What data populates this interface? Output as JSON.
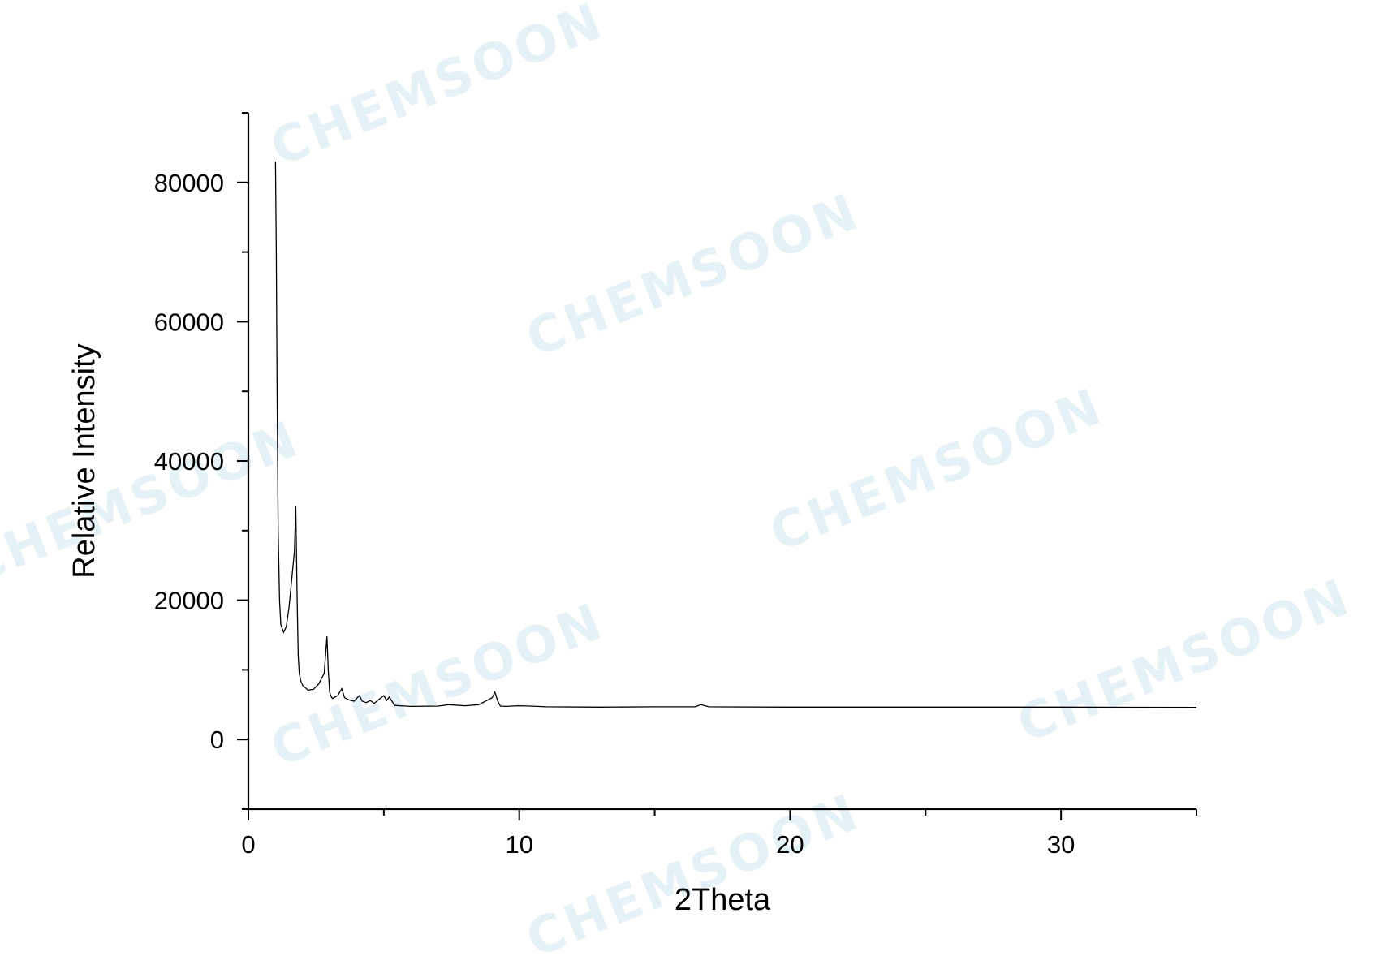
{
  "watermark": {
    "text": "CHEMSOON",
    "color": "#cfe9f3"
  },
  "chart_data": {
    "type": "line",
    "title": "",
    "xlabel": "2Theta",
    "ylabel": "Relative Intensity",
    "xlim": [
      0,
      35
    ],
    "ylim": [
      -10000,
      90000
    ],
    "x_ticks": [
      0,
      10,
      20,
      30
    ],
    "x_minor_ticks": [
      5,
      15,
      25,
      35
    ],
    "y_ticks": [
      0,
      20000,
      40000,
      60000,
      80000
    ],
    "y_minor_ticks": [
      -10000,
      10000,
      30000,
      50000,
      70000,
      90000
    ],
    "grid": false,
    "line_color": "#000000",
    "series": [
      {
        "x": [
          1.0,
          1.03,
          1.06,
          1.1,
          1.15,
          1.2,
          1.3,
          1.4,
          1.5,
          1.6,
          1.7,
          1.75,
          1.8,
          1.84,
          1.88,
          1.93,
          2.0,
          2.2,
          2.4,
          2.6,
          2.8,
          2.9,
          2.95,
          3.0,
          3.05,
          3.1,
          3.3,
          3.45,
          3.55,
          3.7,
          3.9,
          4.1,
          4.2,
          4.35,
          4.5,
          4.65,
          4.8,
          5.0,
          5.1,
          5.2,
          5.3,
          5.4,
          5.6,
          6.0,
          7.0,
          7.4,
          8.0,
          8.5,
          8.8,
          9.0,
          9.1,
          9.2,
          9.3,
          9.5,
          10.0,
          10.4,
          11.0,
          13.0,
          15.0,
          16.5,
          16.7,
          17.0,
          20.0,
          25.0,
          30.0,
          35.0
        ],
        "y": [
          83000,
          70000,
          50000,
          30000,
          20000,
          16500,
          15400,
          16200,
          19000,
          23000,
          27000,
          33500,
          20000,
          12000,
          9500,
          8500,
          7800,
          7100,
          7200,
          8000,
          9500,
          14800,
          10000,
          6800,
          6200,
          5900,
          6300,
          7300,
          6000,
          5700,
          5500,
          6300,
          5500,
          5300,
          5600,
          5200,
          5700,
          6300,
          5600,
          6100,
          5500,
          4900,
          4850,
          4750,
          4800,
          5000,
          4850,
          5000,
          5600,
          6000,
          6800,
          5600,
          4800,
          4750,
          4850,
          4800,
          4700,
          4650,
          4700,
          4700,
          5000,
          4700,
          4650,
          4650,
          4650,
          4600
        ]
      }
    ]
  }
}
